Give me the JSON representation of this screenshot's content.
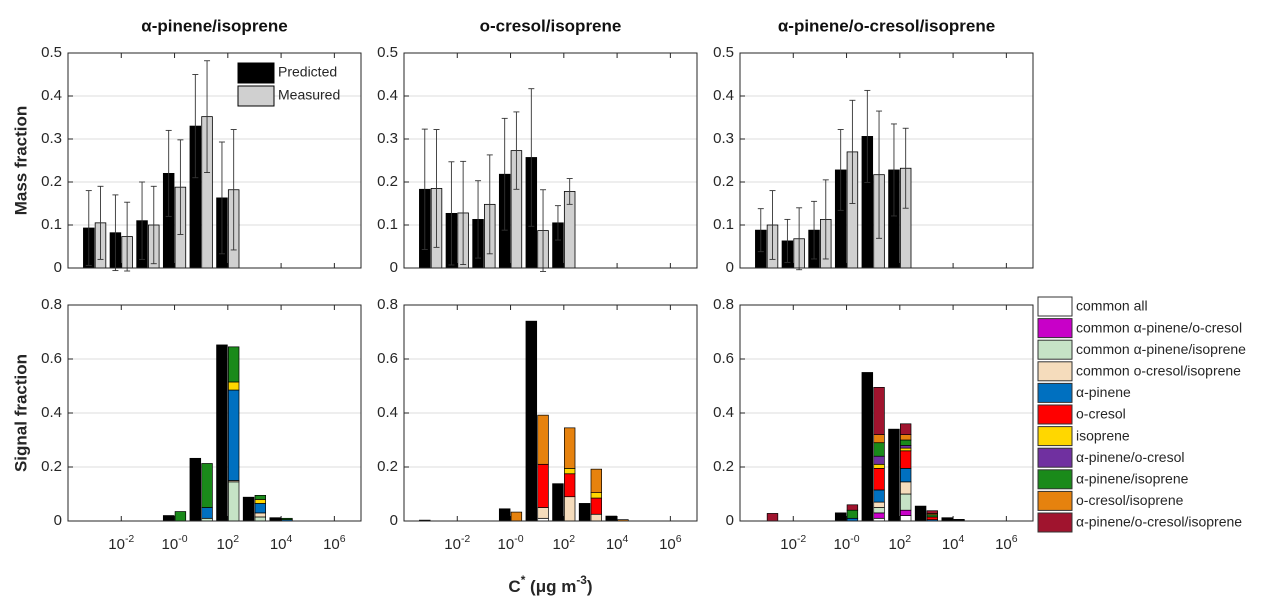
{
  "x_axis": {
    "log": true,
    "xlim": [
      0.0001,
      10000000
    ],
    "xticks": [
      {
        "value": 0.01,
        "label": "10-2"
      },
      {
        "value": 1,
        "label": "10-0"
      },
      {
        "value": 100,
        "label": "102"
      },
      {
        "value": 10000,
        "label": "104"
      },
      {
        "value": 1000000,
        "label": "106"
      }
    ],
    "label": "C* (μg m-3)"
  },
  "x": [
    0.001,
    0.01,
    0.1,
    1,
    10,
    100,
    1000,
    10000,
    100000,
    1000000
  ],
  "bar_legend": {
    "position": "upper right",
    "series": [
      {
        "name": "Predicted",
        "color": "#000000"
      },
      {
        "name": "Measured",
        "color": "#d0d0d0"
      }
    ]
  },
  "stack_legend": {
    "position": "outside right",
    "series": [
      {
        "name": "common all",
        "color": "#ffffff"
      },
      {
        "name": "common α-pinene/o-cresol",
        "color": "#c800c8"
      },
      {
        "name": "common α-pinene/isoprene",
        "color": "#c6e3c6"
      },
      {
        "name": "common o-cresol/isoprene",
        "color": "#f5dcbc"
      },
      {
        "name": "α-pinene",
        "color": "#0070c0"
      },
      {
        "name": "o-cresol",
        "color": "#ff0000"
      },
      {
        "name": "isoprene",
        "color": "#ffd700"
      },
      {
        "name": "α-pinene/o-cresol",
        "color": "#7030a0"
      },
      {
        "name": "α-pinene/isoprene",
        "color": "#1a8a1a"
      },
      {
        "name": "o-cresol/isoprene",
        "color": "#e6820e"
      },
      {
        "name": "α-pinene/o-cresol/isoprene",
        "color": "#a0142e"
      }
    ]
  },
  "chart_data": [
    {
      "type": "bar",
      "title": "α-pinene/isoprene",
      "ylabel": "Mass fraction",
      "ylim": [
        0,
        0.5
      ],
      "yticks": [
        0,
        0.1,
        0.2,
        0.3,
        0.4,
        0.5
      ],
      "grid": true,
      "series": [
        {
          "values": [
            0.093,
            0.082,
            0.11,
            0.22,
            0.33,
            0.163,
            0,
            0,
            0,
            0
          ],
          "errors": [
            0.087,
            0.088,
            0.09,
            0.1,
            0.12,
            0.13,
            null,
            null,
            null,
            null
          ]
        },
        {
          "values": [
            0.105,
            0.073,
            0.1,
            0.188,
            0.352,
            0.182,
            0,
            0,
            0,
            0
          ],
          "errors": [
            0.085,
            0.08,
            0.09,
            0.11,
            0.13,
            0.14,
            null,
            null,
            null,
            null
          ]
        }
      ]
    },
    {
      "type": "bar",
      "title": "o-cresol/isoprene",
      "ylim": [
        0,
        0.5
      ],
      "yticks": [
        0,
        0.1,
        0.2,
        0.3,
        0.4,
        0.5
      ],
      "grid": true,
      "series": [
        {
          "values": [
            0.183,
            0.127,
            0.113,
            0.218,
            0.257,
            0.105,
            0,
            0,
            0,
            0
          ],
          "errors": [
            0.14,
            0.12,
            0.09,
            0.13,
            0.16,
            0.04,
            null,
            null,
            null,
            null
          ]
        },
        {
          "values": [
            0.185,
            0.128,
            0.148,
            0.273,
            0.087,
            0.178,
            0,
            0,
            0,
            0
          ],
          "errors": [
            0.137,
            0.12,
            0.115,
            0.09,
            0.095,
            0.03,
            null,
            null,
            null,
            null
          ]
        }
      ]
    },
    {
      "type": "bar",
      "title": "α-pinene/o-cresol/isoprene",
      "ylim": [
        0,
        0.5
      ],
      "yticks": [
        0,
        0.1,
        0.2,
        0.3,
        0.4,
        0.5
      ],
      "grid": true,
      "series": [
        {
          "values": [
            0.088,
            0.063,
            0.088,
            0.228,
            0.306,
            0.228,
            0,
            0,
            0,
            0
          ],
          "errors": [
            0.05,
            0.05,
            0.067,
            0.094,
            0.107,
            0.107,
            null,
            null,
            null,
            null
          ]
        },
        {
          "values": [
            0.1,
            0.068,
            0.113,
            0.27,
            0.217,
            0.232,
            0,
            0,
            0,
            0
          ],
          "errors": [
            0.08,
            0.072,
            0.092,
            0.12,
            0.148,
            0.093,
            null,
            null,
            null,
            null
          ]
        }
      ]
    },
    {
      "type": "stacked_bar",
      "ylabel": "Signal fraction",
      "ylim": [
        0,
        0.8
      ],
      "yticks": [
        0,
        0.2,
        0.4,
        0.6,
        0.8
      ],
      "grid": true,
      "color": "#000000",
      "values": [
        0,
        0,
        0,
        0.02,
        0.232,
        0.652,
        0.088,
        0.012,
        0,
        0
      ],
      "series": [
        {
          "values": [
            0,
            0,
            0,
            0,
            0,
            0,
            0,
            0,
            0,
            0
          ]
        },
        {
          "values": [
            0,
            0,
            0,
            0,
            0,
            0,
            0,
            0,
            0,
            0
          ]
        },
        {
          "values": [
            0,
            0,
            0,
            0,
            0.01,
            0.145,
            0.015,
            0,
            0,
            0
          ]
        },
        {
          "values": [
            0,
            0,
            0,
            0,
            0,
            0.005,
            0.015,
            0,
            0,
            0
          ]
        },
        {
          "values": [
            0,
            0,
            0,
            0,
            0.04,
            0.335,
            0.035,
            0.005,
            0,
            0
          ]
        },
        {
          "values": [
            0,
            0,
            0,
            0,
            0,
            0,
            0,
            0,
            0,
            0
          ]
        },
        {
          "values": [
            0,
            0,
            0,
            0,
            0,
            0.03,
            0.015,
            0,
            0,
            0
          ]
        },
        {
          "values": [
            0,
            0,
            0,
            0,
            0,
            0,
            0,
            0,
            0,
            0
          ]
        },
        {
          "values": [
            0,
            0,
            0,
            0.035,
            0.163,
            0.13,
            0.015,
            0.005,
            0,
            0
          ]
        },
        {
          "values": [
            0,
            0,
            0,
            0,
            0,
            0,
            0,
            0,
            0,
            0
          ]
        },
        {
          "values": [
            0,
            0,
            0,
            0,
            0,
            0,
            0,
            0,
            0,
            0
          ]
        }
      ]
    },
    {
      "type": "stacked_bar",
      "ylim": [
        0,
        0.8
      ],
      "yticks": [
        0,
        0.2,
        0.4,
        0.6,
        0.8
      ],
      "grid": true,
      "color": "#000000",
      "values": [
        0.003,
        0,
        0,
        0.045,
        0.74,
        0.138,
        0.065,
        0.018,
        0,
        0
      ],
      "series": [
        {
          "values": [
            0,
            0,
            0,
            0,
            0.01,
            0,
            0,
            0,
            0,
            0
          ]
        },
        {
          "values": [
            0,
            0,
            0,
            0,
            0,
            0,
            0,
            0,
            0,
            0
          ]
        },
        {
          "values": [
            0,
            0,
            0,
            0,
            0,
            0,
            0,
            0,
            0,
            0
          ]
        },
        {
          "values": [
            0,
            0,
            0,
            0,
            0.04,
            0.09,
            0.025,
            0,
            0,
            0
          ]
        },
        {
          "values": [
            0,
            0,
            0,
            0,
            0,
            0,
            0,
            0,
            0,
            0
          ]
        },
        {
          "values": [
            0,
            0,
            0,
            0,
            0.16,
            0.085,
            0.06,
            0,
            0,
            0
          ]
        },
        {
          "values": [
            0,
            0,
            0,
            0,
            0,
            0.02,
            0.02,
            0,
            0,
            0
          ]
        },
        {
          "values": [
            0,
            0,
            0,
            0,
            0,
            0,
            0,
            0,
            0,
            0
          ]
        },
        {
          "values": [
            0,
            0,
            0,
            0,
            0,
            0,
            0,
            0,
            0,
            0
          ]
        },
        {
          "values": [
            0,
            0,
            0,
            0.033,
            0.182,
            0.15,
            0.087,
            0.005,
            0,
            0
          ]
        },
        {
          "values": [
            0,
            0,
            0,
            0,
            0,
            0,
            0,
            0,
            0,
            0
          ]
        }
      ]
    },
    {
      "type": "stacked_bar",
      "ylim": [
        0,
        0.8
      ],
      "yticks": [
        0,
        0.2,
        0.4,
        0.6,
        0.8
      ],
      "grid": true,
      "color": "#000000",
      "values": [
        0,
        0,
        0,
        0.03,
        0.55,
        0.34,
        0.055,
        0.012,
        0,
        0
      ],
      "series": [
        {
          "values": [
            0,
            0,
            0,
            0,
            0.01,
            0.02,
            0,
            0,
            0,
            0
          ]
        },
        {
          "values": [
            0,
            0,
            0,
            0,
            0.02,
            0.02,
            0,
            0,
            0,
            0
          ]
        },
        {
          "values": [
            0,
            0,
            0,
            0,
            0.02,
            0.06,
            0,
            0,
            0,
            0
          ]
        },
        {
          "values": [
            0,
            0,
            0,
            0,
            0.02,
            0.045,
            0,
            0,
            0,
            0
          ]
        },
        {
          "values": [
            0,
            0,
            0,
            0.01,
            0.045,
            0.05,
            0.005,
            0.002,
            0,
            0
          ]
        },
        {
          "values": [
            0,
            0,
            0,
            0,
            0.08,
            0.065,
            0.01,
            0.002,
            0,
            0
          ]
        },
        {
          "values": [
            0,
            0,
            0,
            0,
            0.015,
            0.01,
            0,
            0,
            0,
            0
          ]
        },
        {
          "values": [
            0,
            0,
            0,
            0,
            0.03,
            0.01,
            0,
            0,
            0,
            0
          ]
        },
        {
          "values": [
            0,
            0,
            0,
            0.03,
            0.05,
            0.02,
            0.008,
            0,
            0,
            0
          ]
        },
        {
          "values": [
            0,
            0,
            0,
            0,
            0.03,
            0.02,
            0.005,
            0,
            0,
            0
          ]
        },
        {
          "values": [
            0.028,
            0,
            0,
            0.02,
            0.175,
            0.04,
            0.01,
            0.002,
            0,
            0
          ]
        }
      ]
    }
  ]
}
